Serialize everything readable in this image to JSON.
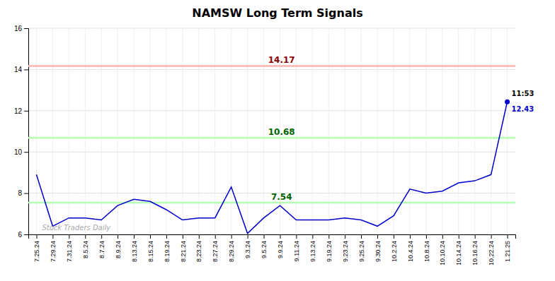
{
  "chart_data": {
    "type": "line",
    "title": "NAMSW Long Term Signals",
    "categories": [
      "7.25.24",
      "7.29.24",
      "7.31.24",
      "8.5.24",
      "8.7.24",
      "8.9.24",
      "8.13.24",
      "8.15.24",
      "8.19.24",
      "8.21.24",
      "8.23.24",
      "8.27.24",
      "8.29.24",
      "9.3.24",
      "9.5.24",
      "9.9.24",
      "9.11.24",
      "9.13.24",
      "9.19.24",
      "9.23.24",
      "9.25.24",
      "9.30.24",
      "10.2.24",
      "10.4.24",
      "10.8.24",
      "10.10.24",
      "10.14.24",
      "10.16.24",
      "10.22.24",
      "1.21.25"
    ],
    "values": [
      8.9,
      6.4,
      6.8,
      6.8,
      6.7,
      7.4,
      7.7,
      7.6,
      7.2,
      6.7,
      6.8,
      6.8,
      8.3,
      6.05,
      6.8,
      7.4,
      6.7,
      6.7,
      6.7,
      6.8,
      6.7,
      6.4,
      6.9,
      8.2,
      8.0,
      8.1,
      8.5,
      8.6,
      8.9,
      12.43
    ],
    "color": "#0000cc",
    "ylim": [
      6,
      16
    ],
    "yticks": [
      6,
      8,
      10,
      12,
      14,
      16
    ],
    "grid": true,
    "reference_lines": [
      {
        "value": 14.17,
        "label": "14.17",
        "color": "#ffb3b3",
        "label_color": "#8b0000"
      },
      {
        "value": 10.68,
        "label": "10.68",
        "color": "#b3ffb3",
        "label_color": "#006400"
      },
      {
        "value": 7.54,
        "label": "7.54",
        "color": "#b3ffb3",
        "label_color": "#006400"
      }
    ],
    "last_point": {
      "marker": "circle",
      "time": "11:53",
      "value_label": "12.43"
    },
    "watermark": "Stock Traders Daily"
  }
}
